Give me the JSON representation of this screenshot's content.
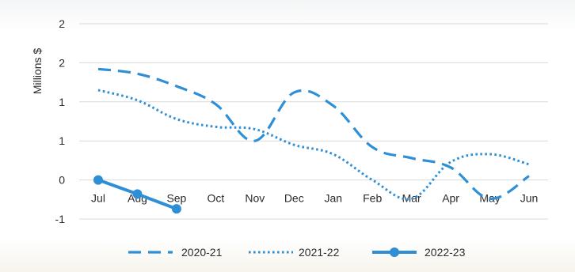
{
  "chart_data": {
    "type": "line",
    "title": "",
    "xlabel": "",
    "ylabel": "Millions $",
    "categories": [
      "Jul",
      "Aug",
      "Sep",
      "Oct",
      "Nov",
      "Dec",
      "Jan",
      "Feb",
      "Mar",
      "Apr",
      "May",
      "Jun"
    ],
    "y_tick_labels": [
      "2",
      "2",
      "1",
      "1",
      "0",
      "-1"
    ],
    "ylim": [
      -0.5,
      2.0
    ],
    "grid": true,
    "legend_position": "bottom",
    "series": [
      {
        "name": "2020-21",
        "style": "dashed",
        "color": "#2e8fd6",
        "values": [
          1.42,
          1.36,
          1.2,
          0.97,
          0.5,
          1.12,
          0.95,
          0.42,
          0.28,
          0.16,
          -0.24,
          0.05
        ]
      },
      {
        "name": "2021-22",
        "style": "dotted",
        "color": "#2e8fd6",
        "values": [
          1.15,
          1.02,
          0.78,
          0.68,
          0.65,
          0.45,
          0.33,
          0.0,
          -0.24,
          0.23,
          0.33,
          0.2
        ]
      },
      {
        "name": "2022-23",
        "style": "solid-marker",
        "color": "#2e8fd6",
        "values": [
          0.0,
          -0.18,
          -0.37,
          null,
          null,
          null,
          null,
          null,
          null,
          null,
          null,
          null
        ]
      }
    ]
  }
}
